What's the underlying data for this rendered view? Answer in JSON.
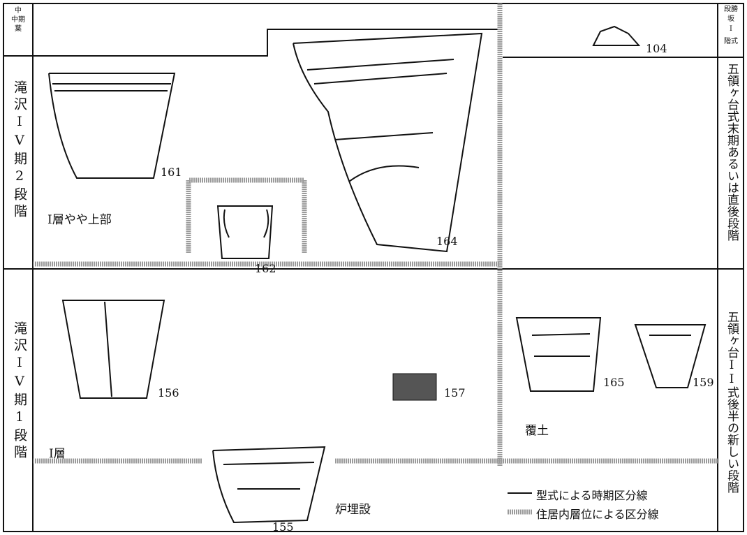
{
  "left_column": {
    "header": [
      "中",
      "中期",
      "葉"
    ],
    "upper_period": "滝沢IV期2段階",
    "lower_period": "滝沢IV期1段階"
  },
  "right_column": {
    "header": [
      "段勝",
      "坂",
      "I",
      "階式"
    ],
    "upper_period": "五領ヶ台式末期あるいは直後段階",
    "lower_period": "五領ヶ台II式後半の新しい段階"
  },
  "layers": {
    "upper": "I層やや上部",
    "lower": "I層",
    "fill": "覆土",
    "hearth": "炉埋設"
  },
  "figures": {
    "f104": "104",
    "f161": "161",
    "f162": "162",
    "f164": "164",
    "f156": "156",
    "f157": "157",
    "f165": "165",
    "f159": "159",
    "f155": "155"
  },
  "legend": {
    "solid": "型式による時期区分線",
    "dotted": "住居内層位による区分線"
  }
}
